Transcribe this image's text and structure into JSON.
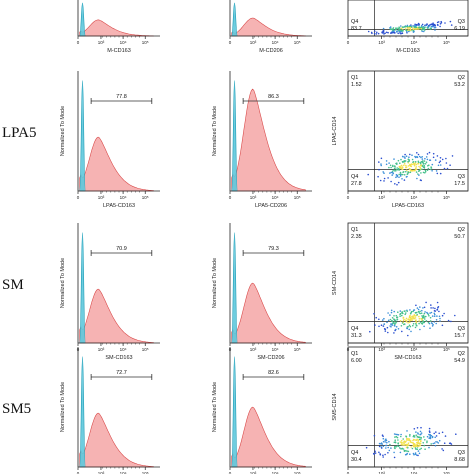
{
  "figure": {
    "rows": [
      {
        "label": "",
        "hist1": {
          "xlabel": "M-CD163",
          "ylabel": "",
          "gate": ""
        },
        "hist2": {
          "xlabel": "M-CD206",
          "ylabel": "",
          "gate": ""
        },
        "scatter": {
          "xlabel": "M-CD163",
          "ylabel": "",
          "q1": "",
          "q1v": "",
          "q2": "",
          "q2v": "",
          "q3": "Q3",
          "q3v": "6.19",
          "q4": "Q4",
          "q4v": "83.7"
        }
      },
      {
        "label": "LPA5",
        "hist1": {
          "xlabel": "LPA5-CD163",
          "ylabel": "Normalized To Mode",
          "gate": "77.8"
        },
        "hist2": {
          "xlabel": "LPA5-CD206",
          "ylabel": "Normalized To Mode",
          "gate": "86.3"
        },
        "scatter": {
          "xlabel": "LPA5-CD163",
          "ylabel": "LPA5-CD14",
          "q1": "Q1",
          "q1v": "1.52",
          "q2": "Q2",
          "q2v": "53.2",
          "q3": "Q3",
          "q3v": "17.5",
          "q4": "Q4",
          "q4v": "27.8"
        }
      },
      {
        "label": "SM",
        "hist1": {
          "xlabel": "SM-CD163",
          "ylabel": "Normalized To Mode",
          "gate": "70.9"
        },
        "hist2": {
          "xlabel": "SM-CD206",
          "ylabel": "Normalized To Mode",
          "gate": "79.3"
        },
        "scatter": {
          "xlabel": "SM-CD163",
          "ylabel": "SM-CD14",
          "q1": "Q1",
          "q1v": "2.35",
          "q2": "Q2",
          "q2v": "50.7",
          "q3": "Q3",
          "q3v": "15.7",
          "q4": "Q4",
          "q4v": "31.3"
        }
      },
      {
        "label": "SM5",
        "hist1": {
          "xlabel": "",
          "ylabel": "Normalized To Mode",
          "gate": "72.7"
        },
        "hist2": {
          "xlabel": "",
          "ylabel": "Normalized To Mode",
          "gate": "82.6"
        },
        "scatter": {
          "xlabel": "",
          "ylabel": "SM5-CD14",
          "q1": "Q1",
          "q1v": "6.00",
          "q2": "Q2",
          "q2v": "54.9",
          "q3": "Q3",
          "q3v": "8.68",
          "q4": "Q4",
          "q4v": "30.4"
        }
      }
    ],
    "tick_labels": [
      "0",
      "10³",
      "10⁴",
      "10⁵"
    ],
    "colors": {
      "control_fill": "#5ec8dc",
      "control_line": "#1b9bb5",
      "stained_fill": "#f4a6a6",
      "stained_line": "#d94a4a",
      "axis": "#222222",
      "gate": "#333333"
    }
  }
}
